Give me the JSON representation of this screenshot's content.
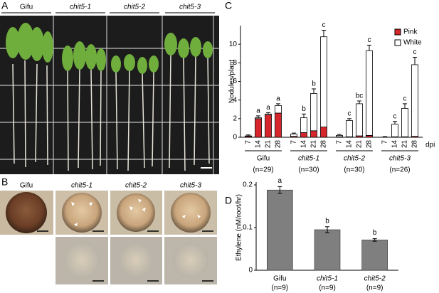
{
  "figure": {
    "panel_letters": [
      "A",
      "B",
      "C",
      "D"
    ]
  },
  "photo_panel_a": {
    "labels": [
      "Gifu",
      "chit5-1",
      "chit5-2",
      "chit5-3"
    ]
  },
  "photo_panel_b": {
    "labels": [
      "Gifu",
      "chit5-1",
      "chit5-2",
      "chit5-3"
    ]
  },
  "chart_data": [
    {
      "type": "stacked_bar",
      "y_label": "Nodules/plant",
      "x_unit": "dpi",
      "categories": [
        "7",
        "14",
        "21",
        "28",
        "7",
        "14",
        "21",
        "28",
        "7",
        "14",
        "21",
        "28",
        "7",
        "14",
        "21",
        "28"
      ],
      "groups": [
        {
          "name": "Gifu",
          "n_label": "(n=29)"
        },
        {
          "name": "chit5-1",
          "n_label": "(n=30)"
        },
        {
          "name": "chit5-2",
          "n_label": "(n=30)"
        },
        {
          "name": "chit5-3",
          "n_label": "(n=26)"
        }
      ],
      "series": [
        {
          "name": "Pink",
          "color": "#d7262b",
          "values": [
            0.1,
            2.0,
            2.4,
            2.6,
            0.1,
            0.5,
            0.7,
            1.1,
            0.05,
            0.05,
            0.15,
            0.2,
            0,
            0.05,
            0.05,
            0.1
          ]
        },
        {
          "name": "White",
          "color": "#ffffff",
          "values": [
            0.05,
            0.1,
            0.1,
            0.8,
            0.25,
            1.6,
            4.0,
            9.7,
            0.15,
            1.75,
            3.45,
            9.1,
            0.02,
            1.35,
            3.05,
            7.7
          ],
          "errors": [
            0.1,
            0.2,
            0.15,
            0.2,
            0.1,
            0.4,
            0.5,
            0.7,
            0.1,
            0.2,
            0.3,
            0.6,
            0.05,
            0.3,
            0.5,
            0.8
          ]
        }
      ],
      "annotations": [
        null,
        "a",
        "a",
        "a",
        null,
        "b",
        "b",
        "c",
        null,
        "c",
        "bc",
        "c",
        null,
        "c",
        "c",
        "c"
      ],
      "ylim": [
        0,
        12
      ],
      "yticks": [
        0,
        2,
        4,
        6,
        8,
        10
      ],
      "legend": "upper right"
    },
    {
      "type": "bar",
      "y_label": "Ethylene (nM/root/hr)",
      "categories": [
        "Gifu",
        "chit5-1",
        "chit5-2"
      ],
      "category_notes": [
        "(n=9)",
        "(n=9)",
        "(n=9)"
      ],
      "values": [
        0.188,
        0.095,
        0.071
      ],
      "errors": [
        0.008,
        0.007,
        0.003
      ],
      "annotations": [
        "a",
        "b",
        "b"
      ],
      "color": "#7f7f7f",
      "ylim": [
        0,
        0.2
      ],
      "yticks": [
        0,
        0.1,
        0.2
      ]
    }
  ]
}
